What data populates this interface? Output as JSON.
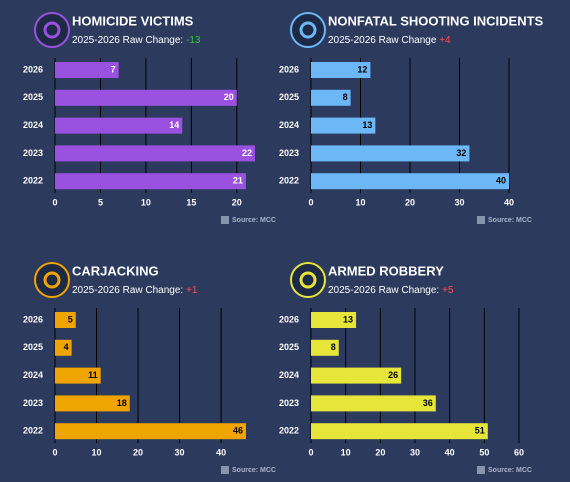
{
  "chart_data": [
    {
      "type": "bar",
      "title": "HOMICIDE VICTIMS",
      "subtitle": "2025-2026 Raw Change:",
      "change": "-13",
      "change_color": "#2ecc40",
      "categories": [
        "2026",
        "2025",
        "2024",
        "2023",
        "2022"
      ],
      "values": [
        7,
        20,
        14,
        22,
        21
      ],
      "color": "#9b51e0",
      "value_label_color": "#ffffff",
      "xlim": [
        0,
        22
      ],
      "xticks": [
        0,
        5,
        10,
        15,
        20
      ],
      "grid": true,
      "source": "Source: MCC"
    },
    {
      "type": "bar",
      "title": "NONFATAL SHOOTING INCIDENTS",
      "subtitle": "2025-2026 Raw Change",
      "change": "+4",
      "change_color": "#ff4d4d",
      "categories": [
        "2026",
        "2025",
        "2024",
        "2023",
        "2022"
      ],
      "values": [
        12,
        8,
        13,
        32,
        40
      ],
      "color": "#6cb8f6",
      "value_label_color": "#000000",
      "xlim": [
        0,
        40
      ],
      "xticks": [
        0,
        10,
        20,
        30,
        40
      ],
      "grid": true,
      "source": "Source: MCC"
    },
    {
      "type": "bar",
      "title": "CARJACKING",
      "subtitle": "2025-2026 Raw Change:",
      "change": "+1",
      "change_color": "#ff4d4d",
      "categories": [
        "2026",
        "2025",
        "2024",
        "2023",
        "2022"
      ],
      "values": [
        5,
        4,
        11,
        18,
        46
      ],
      "color": "#f0a400",
      "value_label_color": "#000000",
      "xlim": [
        0,
        46
      ],
      "xticks": [
        0,
        10,
        20,
        30,
        40
      ],
      "grid": true,
      "source": "Source: MCC"
    },
    {
      "type": "bar",
      "title": "ARMED ROBBERY",
      "subtitle": "2025-2026 Raw Change:",
      "change": "+5",
      "change_color": "#ff4d4d",
      "categories": [
        "2026",
        "2025",
        "2024",
        "2023",
        "2022"
      ],
      "values": [
        13,
        8,
        26,
        36,
        51
      ],
      "color": "#e5e53a",
      "value_label_color": "#000000",
      "xlim": [
        0,
        60
      ],
      "xticks": [
        0,
        10,
        20,
        30,
        40,
        50,
        60
      ],
      "grid": true,
      "source": "Source: MCC"
    }
  ]
}
